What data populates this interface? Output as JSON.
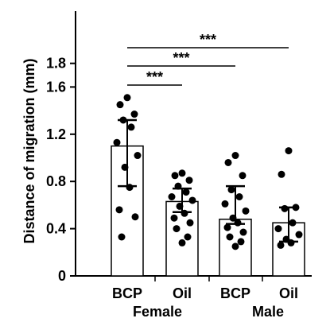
{
  "chart_data": {
    "type": "bar",
    "title": "",
    "xlabel": "",
    "ylabel": "Distance of migration (mm)",
    "ylim": [
      0,
      1.9
    ],
    "yticks": [
      0,
      0.4,
      0.8,
      1.2,
      1.6,
      1.8
    ],
    "ytick_labels": [
      "0",
      "0.4",
      "0.8",
      "1.2",
      "1.6",
      "1.8"
    ],
    "categories": [
      "BCP",
      "Oil",
      "BCP",
      "Oil"
    ],
    "groups": [
      "Female",
      "Male"
    ],
    "values": [
      1.1,
      0.63,
      0.48,
      0.45
    ],
    "error_lower": [
      0.76,
      0.54,
      0.44,
      0.29
    ],
    "error_upper": [
      1.32,
      0.74,
      0.76,
      0.58
    ],
    "points": [
      [
        1.51,
        1.45,
        1.37,
        1.32,
        1.26,
        1.13,
        1.02,
        0.92,
        0.75,
        0.56,
        0.5,
        0.33
      ],
      [
        0.87,
        0.85,
        0.81,
        0.76,
        0.71,
        0.67,
        0.64,
        0.59,
        0.53,
        0.49,
        0.45,
        0.4,
        0.33,
        0.28
      ],
      [
        1.02,
        0.96,
        0.85,
        0.73,
        0.67,
        0.61,
        0.55,
        0.49,
        0.45,
        0.41,
        0.37,
        0.33,
        0.29,
        0.25
      ],
      [
        1.06,
        0.86,
        0.58,
        0.57,
        0.45,
        0.4,
        0.35,
        0.31,
        0.28,
        0.26
      ]
    ],
    "significance": [
      {
        "from": 0,
        "to": 1,
        "label": "***"
      },
      {
        "from": 0,
        "to": 2,
        "label": "***"
      },
      {
        "from": 0,
        "to": 3,
        "label": "***"
      }
    ]
  }
}
